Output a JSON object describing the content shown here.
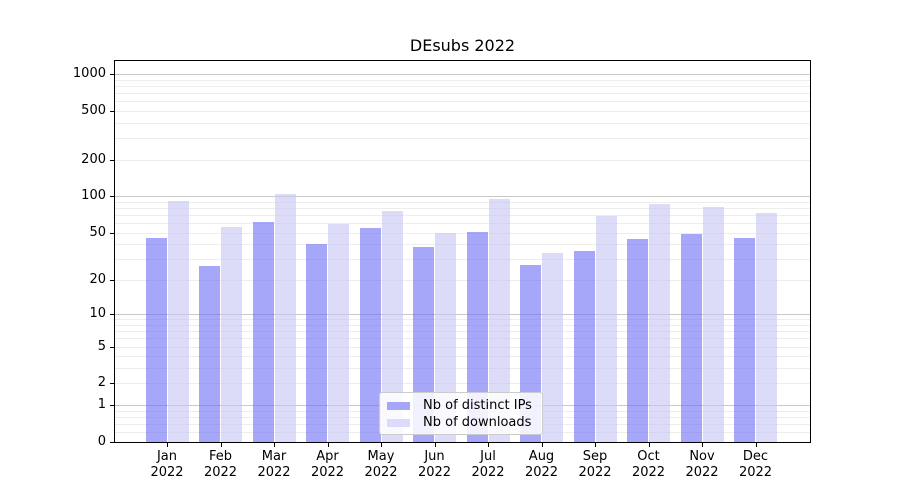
{
  "chart_data": {
    "type": "bar",
    "title": "DEsubs 2022",
    "categories": [
      "Jan",
      "Feb",
      "Mar",
      "Apr",
      "May",
      "Jun",
      "Jul",
      "Aug",
      "Sep",
      "Oct",
      "Nov",
      "Dec"
    ],
    "x_year_label": "2022",
    "series": [
      {
        "name": "Nb of distinct IPs",
        "values": [
          45,
          26,
          61,
          40,
          55,
          38,
          51,
          27,
          35,
          44,
          49,
          45
        ]
      },
      {
        "name": "Nb of downloads",
        "values": [
          92,
          56,
          105,
          59,
          75,
          50,
          95,
          34,
          69,
          86,
          82,
          72
        ]
      }
    ],
    "yscale": "symlog",
    "yticks": [
      1000,
      500,
      200,
      100,
      50,
      20,
      10,
      5,
      2,
      1,
      0
    ],
    "ylim": [
      0,
      1400
    ],
    "grid": "on",
    "legend_position": "lower center inside"
  },
  "colors": {
    "ips_fill": "rgba(113,113,245,0.62)",
    "downloads_fill": "rgba(199,199,246,0.62)",
    "ips_legend": "#a6a6f7",
    "downloads_legend": "#dcdcfa",
    "grid_major": "#c9c9c9",
    "grid_minor": "#ededed",
    "axis": "#000000",
    "text": "#000000",
    "background": "#ffffff"
  }
}
